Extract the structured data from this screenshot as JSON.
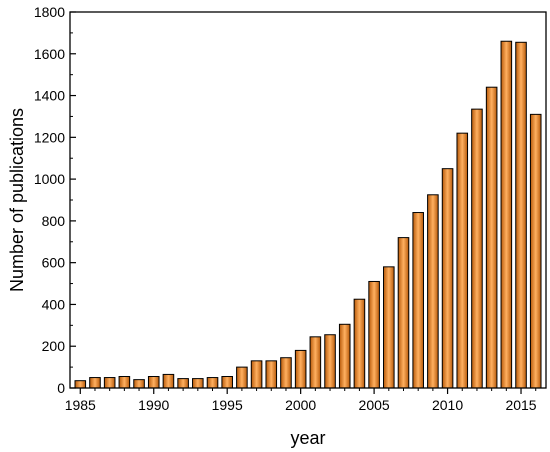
{
  "chart_data": {
    "type": "bar",
    "title": "",
    "xlabel": "year",
    "ylabel": "Number of publications",
    "categories": [
      1985,
      1986,
      1987,
      1988,
      1989,
      1990,
      1991,
      1992,
      1993,
      1994,
      1995,
      1996,
      1997,
      1998,
      1999,
      2000,
      2001,
      2002,
      2003,
      2004,
      2005,
      2006,
      2007,
      2008,
      2009,
      2010,
      2011,
      2012,
      2013,
      2014,
      2015,
      2016
    ],
    "values": [
      35,
      50,
      50,
      55,
      40,
      55,
      65,
      45,
      45,
      50,
      55,
      100,
      130,
      130,
      145,
      180,
      245,
      255,
      305,
      425,
      510,
      580,
      720,
      840,
      925,
      1050,
      1220,
      1335,
      1440,
      1660,
      1655,
      1310
    ],
    "xlim": [
      1984.3,
      2016.7
    ],
    "ylim": [
      0,
      1800
    ],
    "x_ticks": [
      1985,
      1990,
      1995,
      2000,
      2005,
      2010,
      2015
    ],
    "x_tick_labels": [
      "1985",
      "1990",
      "1995",
      "2000",
      "2005",
      "2010",
      "2015"
    ],
    "y_ticks": [
      0,
      200,
      400,
      600,
      800,
      1000,
      1200,
      1400,
      1600,
      1800
    ],
    "y_tick_labels": [
      "0",
      "200",
      "400",
      "600",
      "800",
      "1000",
      "1200",
      "1400",
      "1600",
      "1800"
    ],
    "grid": false,
    "legend": "none",
    "bar_color_light": "#ffb060",
    "bar_color": "#f28a2a",
    "bar_color_dark": "#b85a0a",
    "edge_color": "#000000"
  }
}
